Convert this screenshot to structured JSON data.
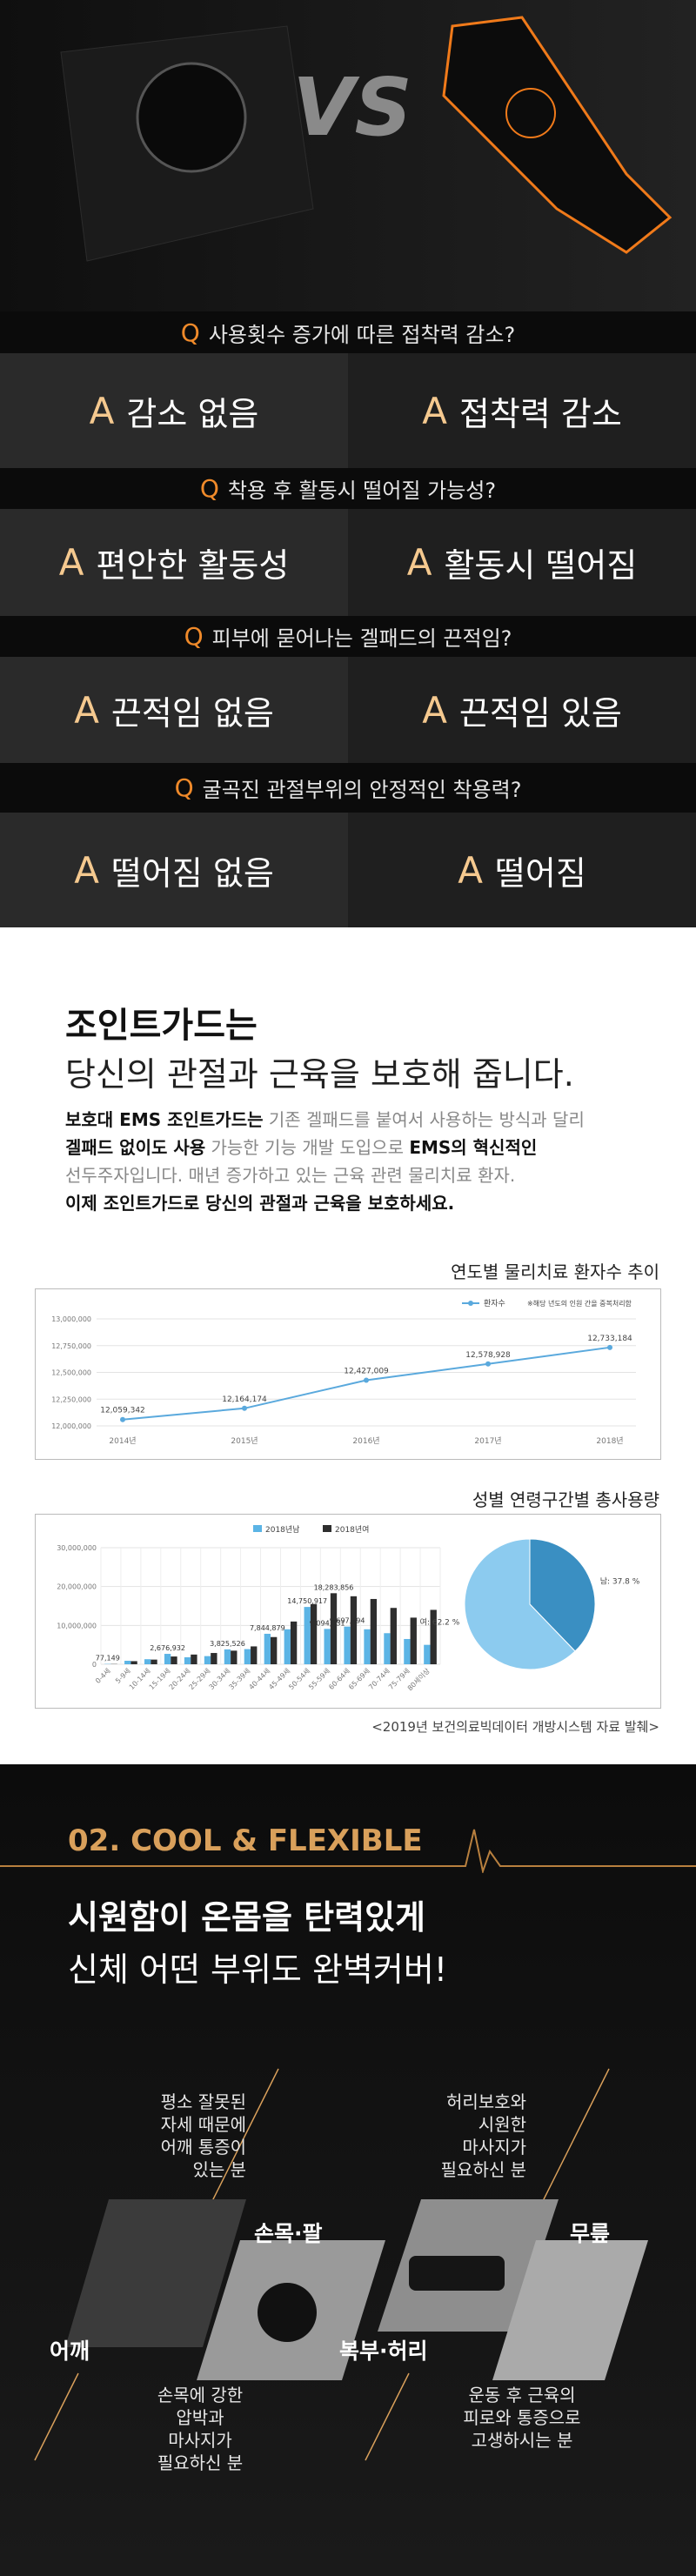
{
  "hero": {
    "vs": "VS"
  },
  "qa": {
    "q_letter": "Q",
    "a_letter": "A",
    "items": [
      {
        "question": "사용횟수 증가에 따른 접착력 감소?",
        "answer_left": "감소 없음",
        "answer_right": "접착력 감소"
      },
      {
        "question": "착용 후 활동시 떨어질 가능성?",
        "answer_left": "편안한 활동성",
        "answer_right": "활동시 떨어짐"
      },
      {
        "question": "피부에 묻어나는 겔패드의 끈적임?",
        "answer_left": "끈적임 없음",
        "answer_right": "끈적임 있음"
      },
      {
        "question": "굴곡진 관절부위의 안정적인 착용력?",
        "answer_left": "떨어짐 없음",
        "answer_right": "떨어짐"
      }
    ]
  },
  "intro": {
    "heading": "조인트가드는",
    "subheading": "당신의 관절과 근육을 보호해 줍니다.",
    "paragraph": [
      [
        {
          "text": "보호대 EMS 조인트가드는",
          "bold": true
        },
        {
          "text": " 기존 겔패드를 붙여서 사용하는 방식과 달리",
          "bold": false
        }
      ],
      [
        {
          "text": "겔패드 없이도 사용",
          "bold": true
        },
        {
          "text": " 가능한 기능 개발 도입으로 ",
          "bold": false
        },
        {
          "text": "EMS의 혁신적인",
          "bold": true
        }
      ],
      [
        {
          "text": "선두주자입니다. 매년 증가하고 있는 근육 관련 물리치료 환자.",
          "bold": false
        }
      ],
      [
        {
          "text": "이제 조인트가드로 당신의 관절과 근육을 보호하세요.",
          "bold": true
        }
      ]
    ]
  },
  "chart_data": [
    {
      "type": "line",
      "title": "연도별 물리치료 환자수 추이",
      "note": "※해당 년도의 인원 간을 중복처리함",
      "legend": "top-right",
      "grid": true,
      "categories": [
        "2014년",
        "2015년",
        "2016년",
        "2017년",
        "2018년"
      ],
      "series": [
        {
          "name": "환자수",
          "color": "#5aa9dd",
          "values": [
            12059342,
            12164174,
            12427009,
            12578928,
            12733184
          ],
          "value_labels": [
            "12,059,342",
            "12,164,174",
            "12,427,009",
            "12,578,928",
            "12,733,184"
          ]
        }
      ],
      "ylim": [
        12000000,
        13000000
      ],
      "yticks": [
        {
          "value": 12000000,
          "label": "12,000,000"
        },
        {
          "value": 12250000,
          "label": "12,250,000"
        },
        {
          "value": 12500000,
          "label": "12,500,000"
        },
        {
          "value": 12750000,
          "label": "12,750,000"
        },
        {
          "value": 13000000,
          "label": "13,000,000"
        }
      ]
    },
    {
      "type": "bar",
      "title": "성별 연령구간별 총사용량",
      "legend": "top",
      "grid": true,
      "categories": [
        "0-4세",
        "5-9세",
        "10-14세",
        "15-19세",
        "20-24세",
        "25-29세",
        "30-34세",
        "35-39세",
        "40-44세",
        "45-49세",
        "50-54세",
        "55-59세",
        "60-64세",
        "65-69세",
        "70-74세",
        "75-79세",
        "80세이상"
      ],
      "series": [
        {
          "name": "2018년남",
          "color": "#5bb4e5",
          "values": [
            77149,
            900000,
            1300000,
            2676932,
            1800000,
            2100000,
            3825526,
            3900000,
            7844879,
            9000000,
            14750917,
            9094131,
            9697594,
            9000000,
            8000000,
            6500000,
            5000000
          ],
          "value_labels": [
            "77,149",
            null,
            null,
            "2,676,932",
            null,
            null,
            "3,825,526",
            null,
            "7,844,879",
            null,
            "14,750,917",
            "9,094,131",
            "9,697,594",
            null,
            null,
            null,
            null
          ]
        },
        {
          "name": "2018년여",
          "color": "#2e2e2e",
          "values": [
            60000,
            800000,
            1200000,
            2000000,
            2500000,
            2900000,
            3500000,
            4600000,
            7000000,
            11000000,
            15500000,
            18283856,
            17500000,
            16800000,
            14500000,
            12000000,
            14000000
          ],
          "value_labels": [
            null,
            null,
            null,
            null,
            null,
            null,
            null,
            null,
            null,
            null,
            null,
            "18,283,856",
            null,
            null,
            null,
            null,
            null
          ]
        }
      ],
      "ylim": [
        0,
        30000000
      ],
      "yticks": [
        0,
        {
          "value": 10000000,
          "label": "10,000,000"
        },
        {
          "value": 20000000,
          "label": "20,000,000"
        },
        {
          "value": 30000000,
          "label": "30,000,000"
        }
      ]
    },
    {
      "type": "pie",
      "categories": [
        "남",
        "여"
      ],
      "values": [
        37.8,
        62.2
      ],
      "colors": [
        "#3a8fc2",
        "#8ccbef"
      ],
      "value_labels": [
        "남: 37.8 %",
        "여: 62.2 %"
      ]
    }
  ],
  "source": "<2019년 보건의료빅데이터 개방시스템 자료 발췌>",
  "cool": {
    "label": "02. COOL & FLEXIBLE",
    "title": "시원함이 온몸을 탄력있게",
    "subtitle": "신체 어떤 부위도 완벽커버!"
  },
  "parts": [
    {
      "name": "어깨",
      "desc": [
        "평소 잘못된",
        "자세 때문에",
        "어깨 통증이",
        "있는 분"
      ]
    },
    {
      "name": "손목·팔",
      "desc": [
        "손목에 강한",
        "압박과",
        "마사지가",
        "필요하신 분"
      ]
    },
    {
      "name": "복부·허리",
      "desc": [
        "허리보호와",
        "시원한",
        "마사지가",
        "필요하신 분"
      ]
    },
    {
      "name": "무릎",
      "desc": [
        "운동 후 근육의",
        "피로와 통증으로",
        "고생하시는 분"
      ]
    }
  ]
}
